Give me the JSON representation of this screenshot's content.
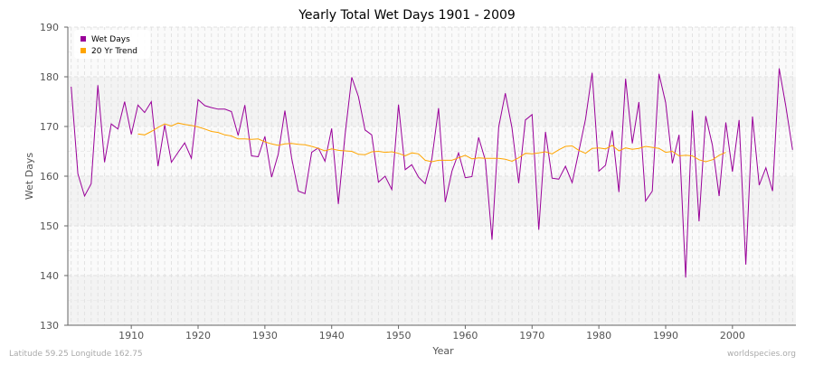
{
  "chart_data": {
    "type": "line",
    "title": "Yearly Total Wet Days 1901 - 2009",
    "xlabel": "Year",
    "ylabel": "Wet Days",
    "xlim": [
      1901,
      2009
    ],
    "ylim": [
      130,
      190
    ],
    "yticks": [
      130,
      140,
      150,
      160,
      170,
      180,
      190
    ],
    "xticks": [
      1910,
      1920,
      1930,
      1940,
      1950,
      1960,
      1970,
      1980,
      1990,
      2000
    ],
    "grid": true,
    "legend_position": "top-left",
    "series": [
      {
        "name": "Wet Days",
        "color": "#990099",
        "x_start": 1901,
        "values": [
          178,
          160.5,
          156,
          158.5,
          178.3,
          162.8,
          170.5,
          169.5,
          175,
          168.4,
          174.3,
          172.8,
          175,
          162,
          170.3,
          162.8,
          164.8,
          166.7,
          163.6,
          175.4,
          174.2,
          173.8,
          173.5,
          173.5,
          173,
          168.2,
          174.3,
          164.1,
          163.9,
          168,
          159.8,
          164.4,
          173.2,
          163.7,
          157,
          156.5,
          164.8,
          165.7,
          163,
          169.6,
          154.4,
          168.3,
          179.9,
          176,
          169.3,
          168.3,
          158.8,
          160,
          157.3,
          174.4,
          161.3,
          162.3,
          159.8,
          158.5,
          163.5,
          173.7,
          154.8,
          161,
          164.7,
          159.7,
          159.9,
          167.8,
          163.2,
          147.2,
          169.9,
          176.7,
          169.7,
          158.6,
          171.3,
          172.4,
          149.2,
          168.9,
          159.6,
          159.4,
          162,
          158.7,
          165,
          171.5,
          180.8,
          161,
          162.2,
          169.2,
          156.8,
          179.6,
          166.6,
          174.9,
          155,
          157,
          180.6,
          174.8,
          162.6,
          168.3,
          139.6,
          173.2,
          150.9,
          172.1,
          166.2,
          156,
          170.8,
          160.9,
          171.3,
          142.2,
          172,
          158.2,
          161.7,
          157,
          181.7,
          174,
          165.3
        ]
      },
      {
        "name": "20 Yr Trend",
        "color": "#ffa500",
        "x_start": 1911,
        "values": [
          168.5,
          168.3,
          169,
          169.8,
          170.5,
          170.1,
          170.7,
          170.4,
          170.2,
          169.9,
          169.5,
          169,
          168.8,
          168.3,
          168.1,
          167.5,
          167.5,
          167.4,
          167.5,
          166.9,
          166.5,
          166.2,
          166.5,
          166.6,
          166.4,
          166.3,
          166,
          165.6,
          165.1,
          165.5,
          165.2,
          165.1,
          165,
          164.4,
          164.3,
          164.9,
          165,
          164.8,
          164.9,
          164.6,
          164.1,
          164.7,
          164.5,
          163.2,
          162.9,
          163.2,
          163.2,
          163.2,
          163.7,
          164.2,
          163.5,
          163.7,
          163.6,
          163.6,
          163.6,
          163.4,
          163,
          163.7,
          164.6,
          164.5,
          164.7,
          164.9,
          164.5,
          165.3,
          166,
          166.1,
          165.2,
          164.6,
          165.6,
          165.7,
          165.5,
          166.2,
          165.1,
          165.7,
          165.4,
          165.6,
          166,
          165.8,
          165.6,
          164.8,
          165,
          164.1,
          164.2,
          164.1,
          163.3,
          162.9,
          163.3,
          164.2,
          164.8
        ]
      }
    ]
  },
  "footer": {
    "location": "Latitude 59.25 Longitude 162.75",
    "source": "worldspecies.org"
  }
}
